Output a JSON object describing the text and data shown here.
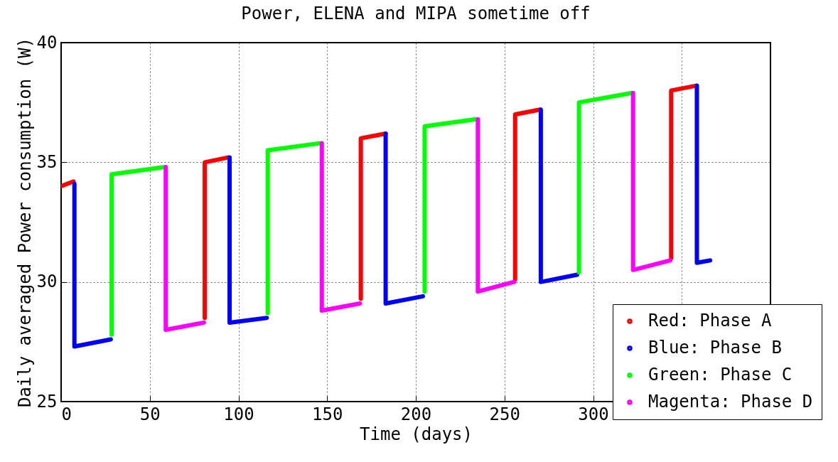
{
  "chart_data": {
    "type": "line",
    "title": "Power, ELENA and MIPA sometime off",
    "xlabel": "Time (days)",
    "ylabel": "Daily averaged Power consumption (W)",
    "xlim": [
      0,
      400
    ],
    "ylim": [
      25,
      40
    ],
    "xticks": [
      0,
      50,
      100,
      150,
      200,
      250,
      300,
      {
        "value": 350,
        "label": null
      }
    ],
    "yticks": [
      25,
      30,
      35,
      40
    ],
    "grid": true,
    "legend": "bottom right",
    "line_style": "solid",
    "series": [
      {
        "name": "Red: Phase A",
        "color": "#ff0000",
        "x": [
          0,
          7,
          40,
          81,
          81,
          94,
          130,
          169,
          169,
          183,
          220,
          256,
          256,
          270,
          310,
          344,
          344,
          358
        ],
        "values": [
          34.0,
          34.2,
          null,
          28.5,
          35.0,
          35.2,
          null,
          29.3,
          36.0,
          36.2,
          null,
          30.1,
          37.0,
          37.2,
          null,
          31.0,
          38.0,
          38.2
        ]
      },
      {
        "name": "Blue: Phase B",
        "color": "#0000ff",
        "x": [
          7.5,
          7.5,
          28,
          60,
          95,
          95,
          116,
          150,
          183,
          183,
          204,
          240,
          270.5,
          270.5,
          291,
          330,
          358.5,
          358.5,
          366
        ],
        "values": [
          34.1,
          27.3,
          27.6,
          null,
          35.2,
          28.3,
          28.5,
          null,
          36.2,
          29.1,
          29.4,
          null,
          37.2,
          30.0,
          30.3,
          null,
          38.2,
          30.8,
          30.9
        ]
      },
      {
        "name": "Green: Phase C",
        "color": "#00ff00",
        "x": [
          28.5,
          28.5,
          58.5,
          90,
          116.5,
          116.5,
          146.5,
          180,
          205,
          205,
          234,
          260,
          292,
          292,
          322
        ],
        "values": [
          27.8,
          34.5,
          34.8,
          null,
          28.7,
          35.5,
          35.8,
          null,
          29.6,
          36.5,
          36.8,
          null,
          30.4,
          37.5,
          37.9
        ]
      },
      {
        "name": "Magenta: Phase D",
        "color": "#ff00ff",
        "x": [
          59,
          59,
          80.5,
          110,
          147,
          147,
          168.5,
          200,
          235,
          235,
          255.5,
          290,
          322.5,
          322.5,
          343.5
        ],
        "values": [
          34.8,
          28.0,
          28.3,
          null,
          35.8,
          28.8,
          29.1,
          null,
          36.8,
          29.6,
          30.0,
          null,
          37.9,
          30.5,
          30.9
        ]
      }
    ]
  }
}
